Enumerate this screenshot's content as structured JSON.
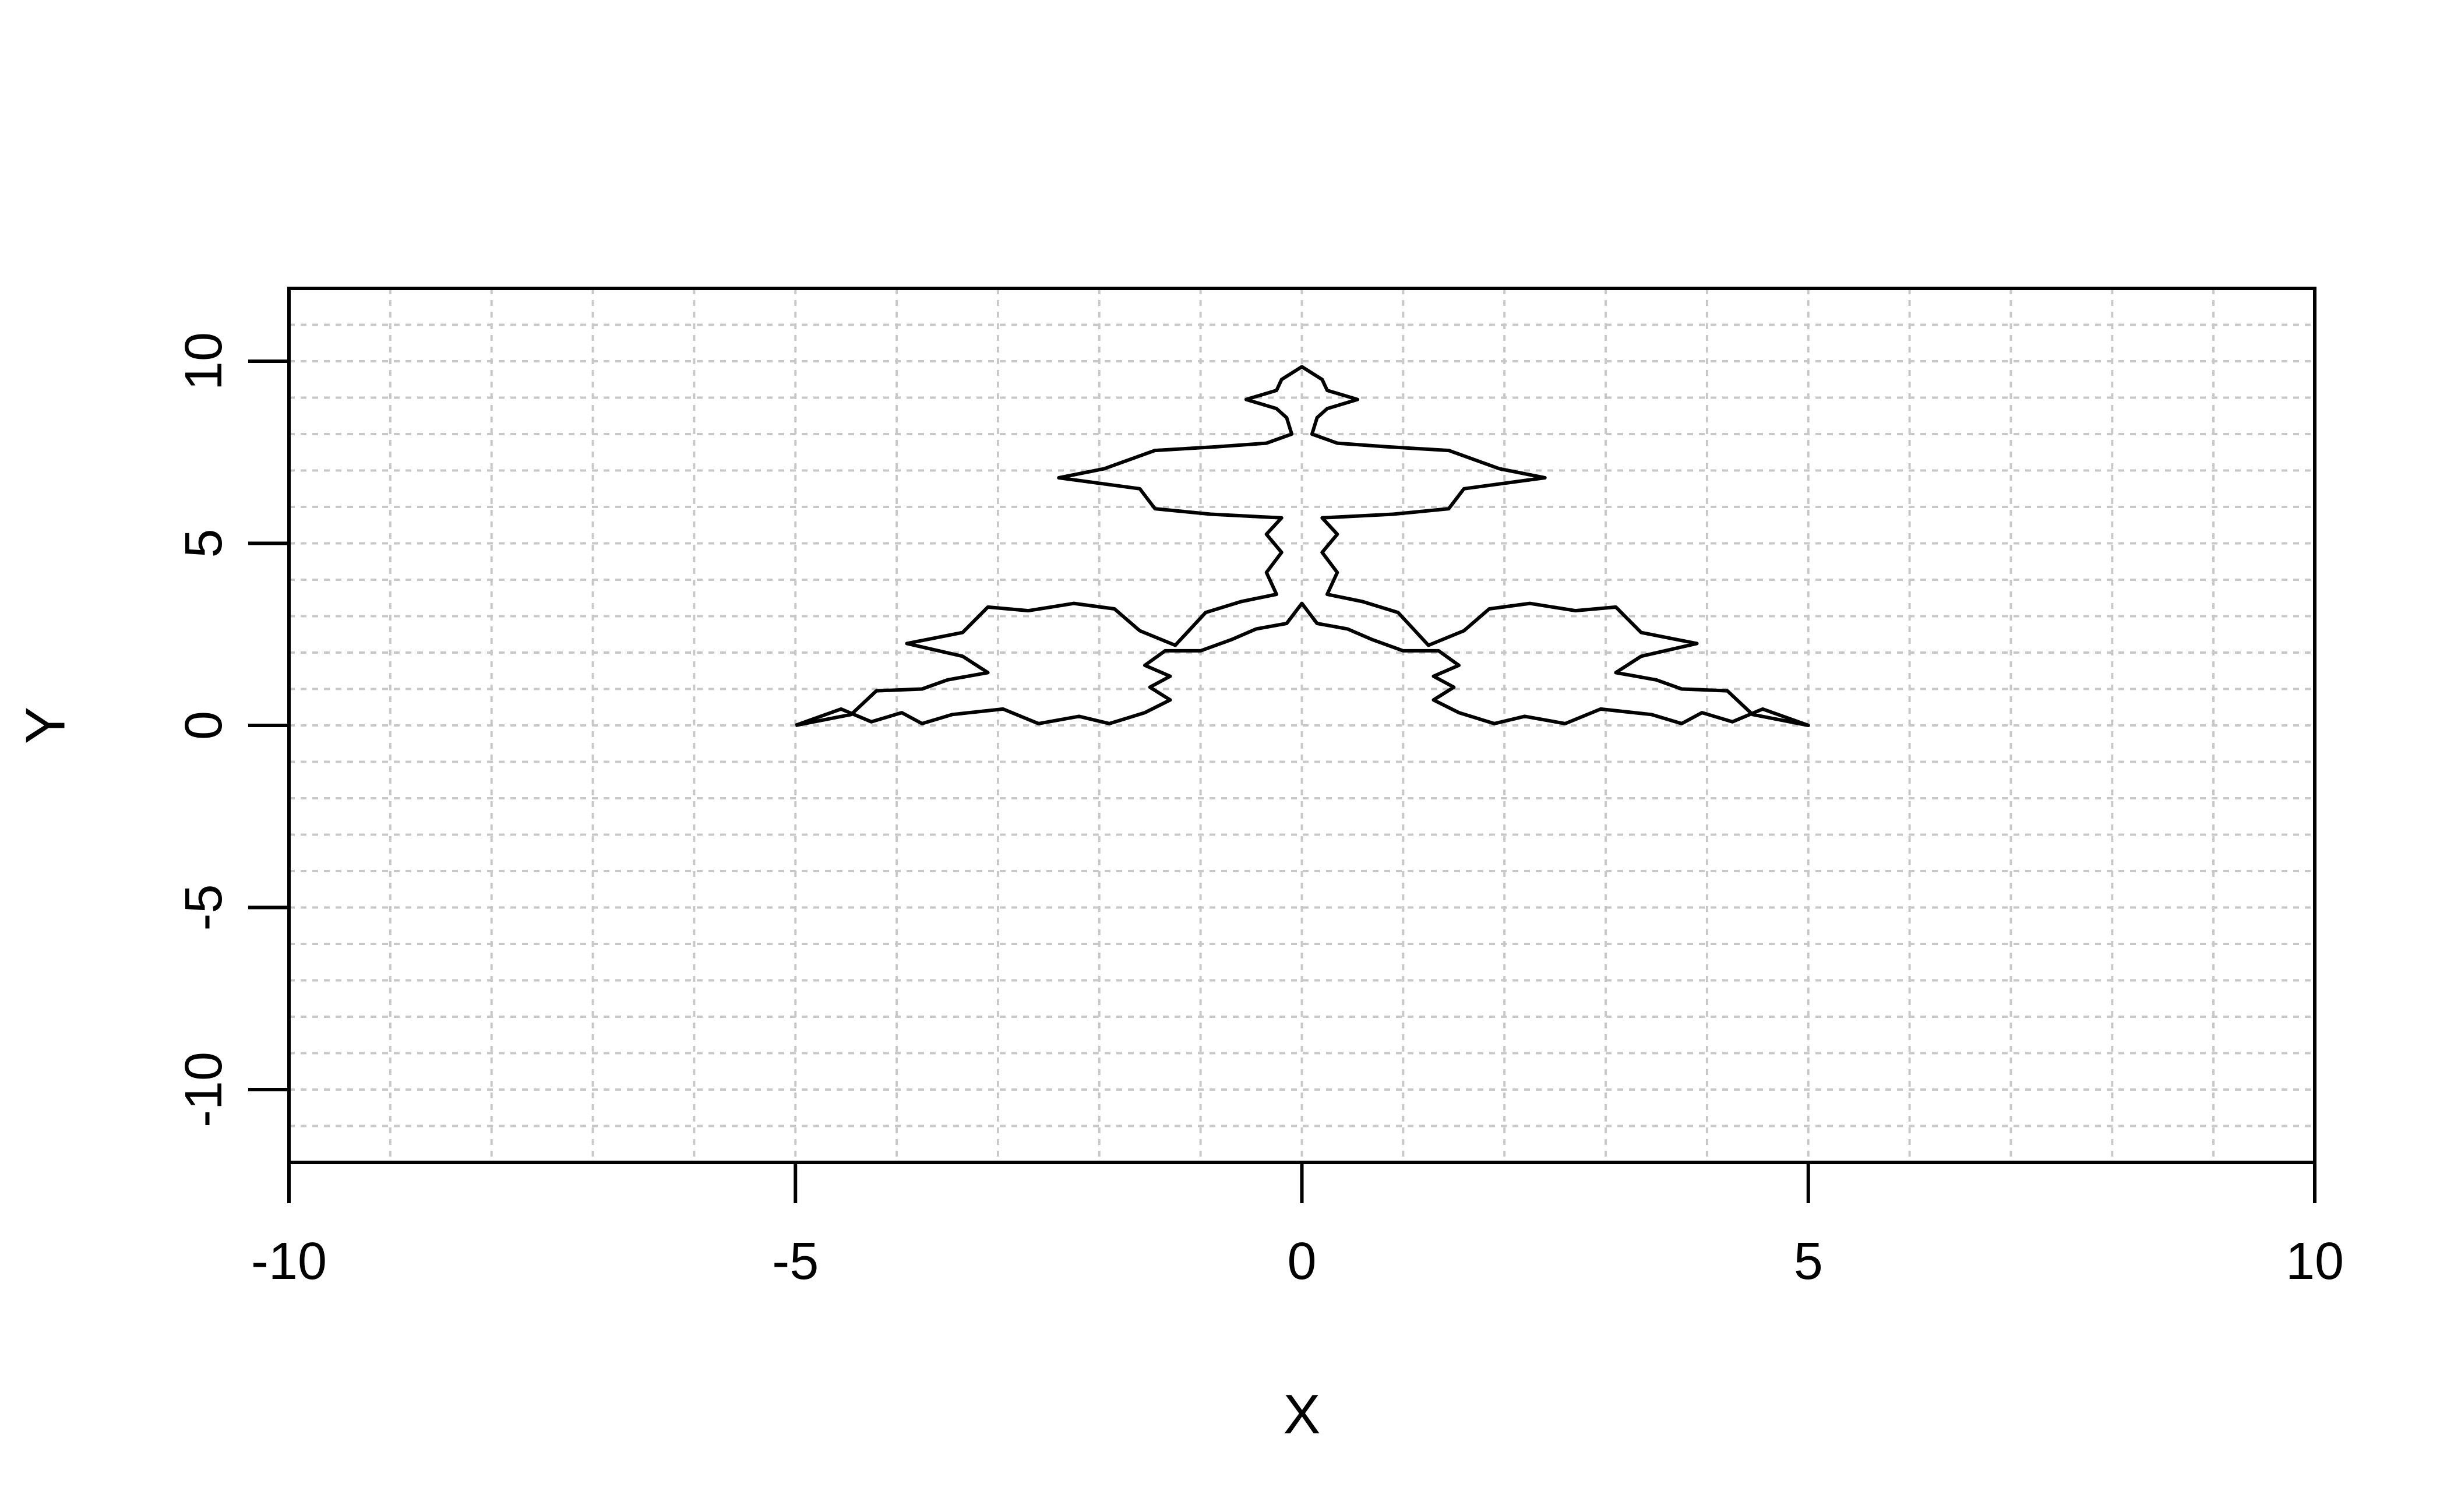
{
  "chart_data": {
    "type": "line",
    "title": "",
    "xlabel": "X",
    "ylabel": "Y",
    "xlim": [
      -10,
      10
    ],
    "ylim": [
      -12,
      12
    ],
    "x_ticks": [
      -10,
      -5,
      0,
      5,
      10
    ],
    "y_ticks": [
      -10,
      -5,
      0,
      5,
      10
    ],
    "x_tick_labels": [
      "-10",
      "-5",
      "0",
      "5",
      "10"
    ],
    "y_tick_labels": [
      "-10",
      "-5",
      "0",
      "5",
      "10"
    ],
    "grid": true,
    "grid_x_step": 1,
    "grid_y_step": 1,
    "grid_style": "dotted",
    "grid_color": "#c8c8c8",
    "line_color": "#000000",
    "legend": "none",
    "curve": "recursive fractal outline drawn as a closed polyline",
    "series": [
      {
        "values": [
          {
            "x": -5.0,
            "y": 0.0
          },
          {
            "x": -4.55,
            "y": 0.45
          },
          {
            "x": -4.25,
            "y": 0.1
          },
          {
            "x": -3.95,
            "y": 0.35
          },
          {
            "x": -3.75,
            "y": 0.05
          },
          {
            "x": -3.45,
            "y": 0.3
          },
          {
            "x": -2.95,
            "y": 0.45
          },
          {
            "x": -2.6,
            "y": 0.05
          },
          {
            "x": -2.2,
            "y": 0.25
          },
          {
            "x": -1.9,
            "y": 0.05
          },
          {
            "x": -1.55,
            "y": 0.35
          },
          {
            "x": -1.3,
            "y": 0.7
          },
          {
            "x": -1.5,
            "y": 1.05
          },
          {
            "x": -1.3,
            "y": 1.35
          },
          {
            "x": -1.55,
            "y": 1.65
          },
          {
            "x": -1.35,
            "y": 2.05
          },
          {
            "x": -1.0,
            "y": 2.05
          },
          {
            "x": -0.7,
            "y": 2.35
          },
          {
            "x": -0.45,
            "y": 2.65
          },
          {
            "x": -0.15,
            "y": 2.8
          },
          {
            "x": 0.0,
            "y": 3.35
          },
          {
            "x": 0.15,
            "y": 2.8
          },
          {
            "x": 0.45,
            "y": 2.65
          },
          {
            "x": 0.7,
            "y": 2.35
          },
          {
            "x": 1.0,
            "y": 2.05
          },
          {
            "x": 1.35,
            "y": 2.05
          },
          {
            "x": 1.55,
            "y": 1.65
          },
          {
            "x": 1.3,
            "y": 1.35
          },
          {
            "x": 1.5,
            "y": 1.05
          },
          {
            "x": 1.3,
            "y": 0.7
          },
          {
            "x": 1.55,
            "y": 0.35
          },
          {
            "x": 1.9,
            "y": 0.05
          },
          {
            "x": 2.2,
            "y": 0.25
          },
          {
            "x": 2.6,
            "y": 0.05
          },
          {
            "x": 2.95,
            "y": 0.45
          },
          {
            "x": 3.45,
            "y": 0.3
          },
          {
            "x": 3.75,
            "y": 0.05
          },
          {
            "x": 3.95,
            "y": 0.35
          },
          {
            "x": 4.25,
            "y": 0.1
          },
          {
            "x": 4.55,
            "y": 0.45
          },
          {
            "x": 5.0,
            "y": 0.0
          },
          {
            "x": 4.45,
            "y": 0.3
          },
          {
            "x": 4.2,
            "y": 0.95
          },
          {
            "x": 3.75,
            "y": 1.0
          },
          {
            "x": 3.5,
            "y": 1.25
          },
          {
            "x": 3.1,
            "y": 1.45
          },
          {
            "x": 3.35,
            "y": 1.9
          },
          {
            "x": 3.9,
            "y": 2.25
          },
          {
            "x": 3.35,
            "y": 2.55
          },
          {
            "x": 3.1,
            "y": 3.25
          },
          {
            "x": 2.7,
            "y": 3.15
          },
          {
            "x": 2.25,
            "y": 3.35
          },
          {
            "x": 1.85,
            "y": 3.2
          },
          {
            "x": 1.6,
            "y": 2.6
          },
          {
            "x": 1.25,
            "y": 2.2
          },
          {
            "x": 0.95,
            "y": 3.1
          },
          {
            "x": 0.6,
            "y": 3.4
          },
          {
            "x": 0.25,
            "y": 3.6
          },
          {
            "x": 0.35,
            "y": 4.2
          },
          {
            "x": 0.2,
            "y": 4.75
          },
          {
            "x": 0.35,
            "y": 5.25
          },
          {
            "x": 0.2,
            "y": 5.7
          },
          {
            "x": 0.9,
            "y": 5.8
          },
          {
            "x": 1.45,
            "y": 5.95
          },
          {
            "x": 1.6,
            "y": 6.5
          },
          {
            "x": 2.4,
            "y": 6.8
          },
          {
            "x": 1.95,
            "y": 7.05
          },
          {
            "x": 1.45,
            "y": 7.55
          },
          {
            "x": 0.85,
            "y": 7.65
          },
          {
            "x": 0.35,
            "y": 7.75
          },
          {
            "x": 0.1,
            "y": 8.0
          },
          {
            "x": 0.15,
            "y": 8.45
          },
          {
            "x": 0.25,
            "y": 8.7
          },
          {
            "x": 0.55,
            "y": 8.95
          },
          {
            "x": 0.25,
            "y": 9.2
          },
          {
            "x": 0.2,
            "y": 9.5
          },
          {
            "x": 0.0,
            "y": 9.85
          },
          {
            "x": -0.2,
            "y": 9.5
          },
          {
            "x": -0.25,
            "y": 9.2
          },
          {
            "x": -0.55,
            "y": 8.95
          },
          {
            "x": -0.25,
            "y": 8.7
          },
          {
            "x": -0.15,
            "y": 8.45
          },
          {
            "x": -0.1,
            "y": 8.0
          },
          {
            "x": -0.35,
            "y": 7.75
          },
          {
            "x": -0.85,
            "y": 7.65
          },
          {
            "x": -1.45,
            "y": 7.55
          },
          {
            "x": -1.95,
            "y": 7.05
          },
          {
            "x": -2.4,
            "y": 6.8
          },
          {
            "x": -1.6,
            "y": 6.5
          },
          {
            "x": -1.45,
            "y": 5.95
          },
          {
            "x": -0.9,
            "y": 5.8
          },
          {
            "x": -0.2,
            "y": 5.7
          },
          {
            "x": -0.35,
            "y": 5.25
          },
          {
            "x": -0.2,
            "y": 4.75
          },
          {
            "x": -0.35,
            "y": 4.2
          },
          {
            "x": -0.25,
            "y": 3.6
          },
          {
            "x": -0.6,
            "y": 3.4
          },
          {
            "x": -0.95,
            "y": 3.1
          },
          {
            "x": -1.25,
            "y": 2.2
          },
          {
            "x": -1.6,
            "y": 2.6
          },
          {
            "x": -1.85,
            "y": 3.2
          },
          {
            "x": -2.25,
            "y": 3.35
          },
          {
            "x": -2.7,
            "y": 3.15
          },
          {
            "x": -3.1,
            "y": 3.25
          },
          {
            "x": -3.35,
            "y": 2.55
          },
          {
            "x": -3.9,
            "y": 2.25
          },
          {
            "x": -3.35,
            "y": 1.9
          },
          {
            "x": -3.1,
            "y": 1.45
          },
          {
            "x": -3.5,
            "y": 1.25
          },
          {
            "x": -3.75,
            "y": 1.0
          },
          {
            "x": -4.2,
            "y": 0.95
          },
          {
            "x": -4.45,
            "y": 0.3
          },
          {
            "x": -5.0,
            "y": 0.0
          }
        ]
      }
    ]
  }
}
